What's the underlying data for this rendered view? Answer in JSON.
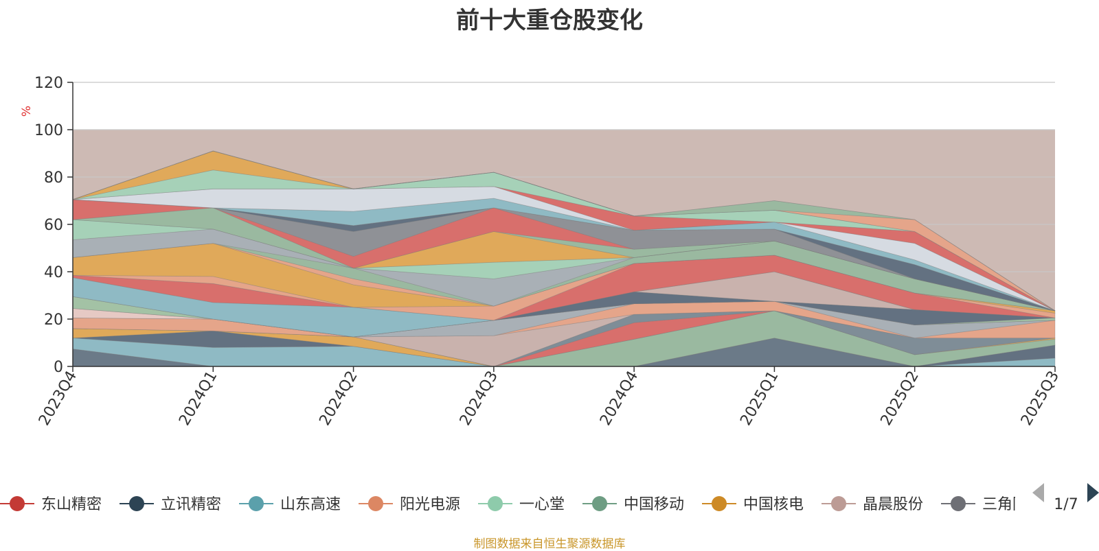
{
  "title": "前十大重仓股变化",
  "source_note": "制图数据来自恒生聚源数据库",
  "legend_page": "1/7",
  "chart_data": {
    "type": "area",
    "stacked": true,
    "title": "前十大重仓股变化",
    "ylabel": "%",
    "ylim": [
      0,
      120
    ],
    "yticks": [
      0,
      20,
      40,
      60,
      80,
      100,
      120
    ],
    "categories": [
      "2023Q4",
      "2024Q1",
      "2024Q2",
      "2024Q3",
      "2024Q4",
      "2025Q1",
      "2025Q2",
      "2025Q3"
    ],
    "background_band": {
      "from": 0,
      "to": 100,
      "color": "#cdbab4"
    },
    "grid": true,
    "legend_position": "bottom",
    "series": [
      {
        "values": [
          7.4,
          0,
          0,
          0,
          0,
          12,
          0,
          0
        ],
        "color": "#6b7a88"
      },
      {
        "values": [
          4.6,
          8,
          8.5,
          0,
          0,
          0,
          0,
          3.5
        ],
        "color": "#8fbac4"
      },
      {
        "values": [
          0,
          7,
          0,
          0,
          0,
          0,
          0,
          5.5
        ],
        "color": "#637181"
      },
      {
        "values": [
          0,
          0,
          0,
          0,
          11.5,
          11.5,
          5,
          2.5
        ],
        "color": "#9ab9a0"
      },
      {
        "values": [
          4,
          0,
          4,
          0,
          0,
          0,
          0,
          0.5
        ],
        "color": "#e0a95a"
      },
      {
        "values": [
          0,
          0,
          0,
          0,
          7,
          0,
          0,
          0
        ],
        "color": "#d86f6c"
      },
      {
        "values": [
          0,
          0,
          0,
          0,
          3.5,
          0,
          7,
          0
        ],
        "color": "#7f8d97"
      },
      {
        "values": [
          0,
          0,
          0,
          13,
          0,
          0,
          0,
          0
        ],
        "color": "#c9b2ad"
      },
      {
        "values": [
          4.5,
          5,
          0,
          0,
          4.5,
          4,
          0,
          7.5
        ],
        "color": "#e5a58a"
      },
      {
        "values": [
          0,
          0,
          0,
          6.5,
          0,
          0,
          5.5,
          0
        ],
        "color": "#a9b0b6"
      },
      {
        "values": [
          4,
          0,
          0,
          0,
          0,
          0,
          0,
          0
        ],
        "color": "#e6c9c4"
      },
      {
        "values": [
          0,
          0,
          0,
          0,
          0,
          0,
          0,
          0
        ],
        "color": "#d86f6c"
      },
      {
        "values": [
          5,
          0,
          0,
          0,
          0,
          0,
          0,
          1
        ],
        "color": "#a3c2a5"
      },
      {
        "values": [
          0,
          0,
          0,
          0,
          5,
          0,
          6.5,
          0
        ],
        "color": "#637181"
      },
      {
        "values": [
          0,
          0,
          0,
          0,
          0,
          12.5,
          0,
          0
        ],
        "color": "#c9b2ad"
      },
      {
        "values": [
          8,
          7,
          12.5,
          0,
          0,
          0,
          0,
          0
        ],
        "color": "#8fbac4"
      },
      {
        "values": [
          1,
          8,
          0,
          0,
          12,
          7,
          7,
          0
        ],
        "color": "#d86f6c"
      },
      {
        "values": [
          0,
          3,
          0,
          6,
          0,
          0,
          0,
          2
        ],
        "color": "#e5a58a"
      },
      {
        "values": [
          7.5,
          14,
          9.5,
          0,
          0,
          0,
          0,
          1
        ],
        "color": "#e0a95a"
      },
      {
        "values": [
          0,
          0,
          2.5,
          0,
          0,
          0,
          0,
          0
        ],
        "color": "#e5a58a"
      },
      {
        "values": [
          0,
          0,
          4.5,
          0,
          2.5,
          6,
          6,
          0
        ],
        "color": "#9ab9a0"
      },
      {
        "values": [
          7.5,
          6,
          0,
          11.5,
          0,
          0,
          0,
          0
        ],
        "color": "#a9b0b6"
      },
      {
        "values": [
          8.5,
          0,
          0,
          7,
          0,
          0,
          0,
          0
        ],
        "color": "#a6d1b8"
      },
      {
        "values": [
          0,
          0,
          0,
          13,
          0,
          0,
          0,
          0
        ],
        "color": "#e0a95a"
      },
      {
        "values": [
          0,
          9,
          0,
          0,
          3.5,
          0,
          0,
          0
        ],
        "color": "#9ab9a0"
      },
      {
        "values": [
          8.5,
          0,
          5,
          10,
          0,
          0,
          0,
          0
        ],
        "color": "#d86f6c"
      },
      {
        "values": [
          0,
          0,
          10.5,
          0,
          8,
          5,
          0,
          0
        ],
        "color": "#8f9196"
      },
      {
        "values": [
          0,
          0,
          2.5,
          0,
          0,
          0,
          6,
          0
        ],
        "color": "#637181"
      },
      {
        "values": [
          0,
          0,
          6,
          4,
          0,
          3,
          2,
          0
        ],
        "color": "#8fbac4"
      },
      {
        "values": [
          0,
          8,
          9.5,
          5,
          0,
          0,
          7,
          0
        ],
        "color": "#d6dbe2"
      },
      {
        "values": [
          0,
          0,
          0,
          0,
          6,
          0,
          5,
          0
        ],
        "color": "#d86f6c"
      },
      {
        "values": [
          0,
          8,
          0,
          6,
          0,
          5,
          0,
          0
        ],
        "color": "#a6d1b8"
      },
      {
        "values": [
          0,
          8,
          0,
          0,
          0,
          0,
          0,
          0
        ],
        "color": "#e0a95a"
      },
      {
        "values": [
          0,
          0,
          0,
          0,
          0,
          0,
          5,
          0
        ],
        "color": "#e5a58a"
      },
      {
        "values": [
          0,
          0,
          0,
          0,
          0,
          4,
          0,
          0
        ],
        "color": "#9ab9a0"
      },
      {
        "values": [
          0,
          0,
          0,
          0,
          0,
          0,
          0,
          0
        ],
        "color": "#cdbab4"
      }
    ],
    "legend": [
      {
        "label": "东山精密",
        "color": "#c33a35"
      },
      {
        "label": "立讯精密",
        "color": "#2d4454"
      },
      {
        "label": "山东高速",
        "color": "#5ba0ab"
      },
      {
        "label": "阳光电源",
        "color": "#dc8763"
      },
      {
        "label": "一心堂",
        "color": "#8ecbab"
      },
      {
        "label": "中国移动",
        "color": "#6e9d83"
      },
      {
        "label": "中国核电",
        "color": "#cd8a26"
      },
      {
        "label": "晶晨股份",
        "color": "#bc9b95"
      },
      {
        "label": "三角防务",
        "color": "#6e6f75"
      }
    ]
  }
}
